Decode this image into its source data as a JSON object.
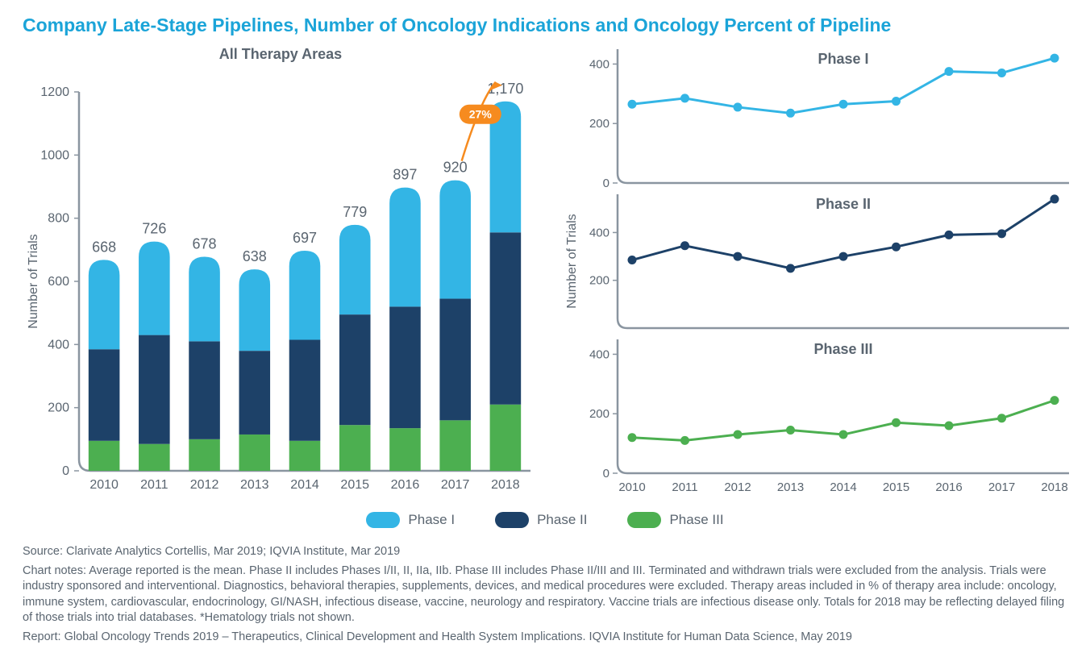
{
  "title": "Company Late-Stage Pipelines, Number of Oncology Indications and Oncology Percent of Pipeline",
  "colors": {
    "phase1": "#33b5e5",
    "phase2": "#1d4168",
    "phase3": "#4caf50",
    "axis": "#8a95a0",
    "text": "#5a6570",
    "callout": "#f68b1f",
    "title": "#1ba4d8",
    "bg": "#ffffff"
  },
  "bar_chart": {
    "subtitle": "All Therapy Areas",
    "ylabel": "Number of Trials",
    "ylim": [
      0,
      1200
    ],
    "ytick_step": 200,
    "years": [
      2010,
      2011,
      2012,
      2013,
      2014,
      2015,
      2016,
      2017,
      2018
    ],
    "totals": [
      668,
      726,
      678,
      638,
      697,
      779,
      897,
      920,
      1170
    ],
    "phase3": [
      95,
      85,
      100,
      115,
      95,
      145,
      135,
      160,
      210
    ],
    "phase2": [
      290,
      345,
      310,
      265,
      320,
      350,
      385,
      385,
      545
    ],
    "phase1": [
      283,
      296,
      268,
      258,
      282,
      284,
      377,
      375,
      415
    ],
    "callout": {
      "label": "27%",
      "between_years": [
        2017,
        2018
      ]
    },
    "bar_width": 0.62,
    "label_fontsize": 16
  },
  "line_charts": {
    "ylabel": "Number of Trials",
    "years": [
      2010,
      2011,
      2012,
      2013,
      2014,
      2015,
      2016,
      2017,
      2018
    ],
    "panels": [
      {
        "title": "Phase I",
        "color_key": "phase1",
        "ylim": [
          0,
          450
        ],
        "yticks": [
          0,
          200,
          400
        ],
        "values": [
          265,
          285,
          255,
          235,
          265,
          275,
          375,
          370,
          420
        ]
      },
      {
        "title": "Phase II",
        "color_key": "phase2",
        "ylim": [
          0,
          560
        ],
        "yticks": [
          200,
          400
        ],
        "values": [
          285,
          345,
          300,
          250,
          300,
          340,
          390,
          395,
          540
        ]
      },
      {
        "title": "Phase III",
        "color_key": "phase3",
        "ylim": [
          0,
          450
        ],
        "yticks": [
          0,
          200,
          400
        ],
        "values": [
          120,
          110,
          130,
          145,
          130,
          170,
          160,
          185,
          245
        ]
      }
    ],
    "marker_radius": 5.5,
    "line_width": 3
  },
  "legend": [
    {
      "label": "Phase I",
      "color_key": "phase1"
    },
    {
      "label": "Phase II",
      "color_key": "phase2"
    },
    {
      "label": "Phase III",
      "color_key": "phase3"
    }
  ],
  "footnotes": {
    "source": "Source: Clarivate Analytics Cortellis, Mar 2019; IQVIA Institute, Mar 2019",
    "notes": "Chart notes: Average reported is the mean. Phase II includes Phases I/II, II, IIa, IIb. Phase III includes Phase II/III and III. Terminated and withdrawn trials were excluded from the analysis. Trials were industry sponsored and interventional. Diagnostics, behavioral therapies, supplements, devices, and medical procedures were excluded. Therapy areas included in % of therapy area include: oncology, immune system, cardiovascular, endocrinology, GI/NASH, infectious disease, vaccine, neurology and respiratory. Vaccine trials are infectious disease only. Totals for 2018 may be reflecting delayed filing of those trials into trial databases. *Hematology trials not shown.",
    "report": "Report: Global Oncology Trends 2019 – Therapeutics, Clinical Development and Health System Implications. IQVIA Institute for Human Data Science, May 2019"
  }
}
